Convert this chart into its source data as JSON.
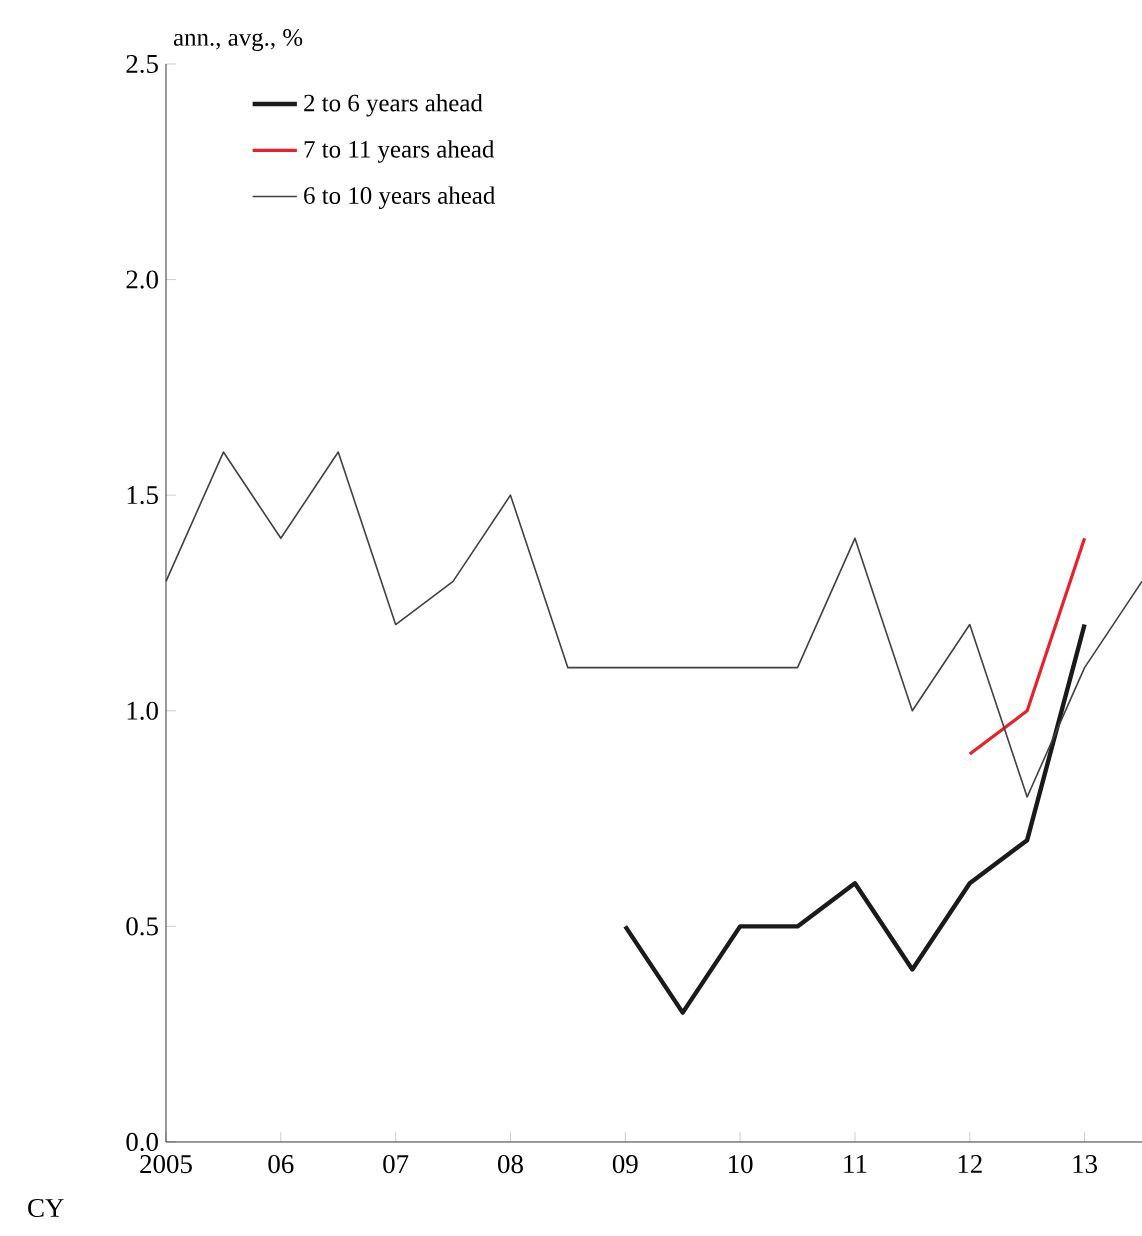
{
  "chart_data": {
    "type": "line",
    "ylabel": "ann., avg., %",
    "x": [
      2005,
      2005.5,
      2006,
      2006.5,
      2007,
      2007.5,
      2008,
      2008.5,
      2009,
      2009.5,
      2010,
      2010.5,
      2011,
      2011.5,
      2012,
      2012.5,
      2013,
      2013.5
    ],
    "series": [
      {
        "name": "2 to 6 years ahead",
        "color": "#1a1a1a",
        "values": [
          null,
          null,
          null,
          null,
          null,
          null,
          null,
          null,
          0.5,
          0.3,
          0.5,
          0.5,
          0.6,
          0.4,
          0.6,
          0.7,
          1.2,
          null
        ]
      },
      {
        "name": "7 to 11 years ahead",
        "color": "#e8202a",
        "values": [
          null,
          null,
          null,
          null,
          null,
          null,
          null,
          null,
          null,
          null,
          null,
          null,
          null,
          null,
          0.9,
          1.0,
          1.4,
          null
        ]
      },
      {
        "name": "6 to 10 years ahead",
        "color": "#404040",
        "values": [
          1.3,
          1.6,
          1.4,
          1.6,
          1.2,
          1.3,
          1.5,
          1.1,
          1.1,
          1.1,
          1.1,
          1.1,
          1.4,
          1.0,
          1.2,
          0.8,
          1.1,
          1.3
        ]
      }
    ],
    "xlim": [
      2005,
      2013.5
    ],
    "xticks": [
      {
        "value": 2005,
        "label": "2005"
      },
      {
        "value": 2006,
        "label": "06"
      },
      {
        "value": 2007,
        "label": "07"
      },
      {
        "value": 2008,
        "label": "08"
      },
      {
        "value": 2009,
        "label": "09"
      },
      {
        "value": 2010,
        "label": "10"
      },
      {
        "value": 2011,
        "label": "11"
      },
      {
        "value": 2012,
        "label": "12"
      },
      {
        "value": 2013,
        "label": "13"
      }
    ],
    "ylim": [
      0,
      2.5
    ],
    "yticks": [
      {
        "value": 0,
        "label": "0.0"
      },
      {
        "value": 0.5,
        "label": "0.5"
      },
      {
        "value": 1,
        "label": "1.0"
      },
      {
        "value": 1.5,
        "label": "1.5"
      },
      {
        "value": 2,
        "label": "2.0"
      },
      2.5
    ],
    "annotations": [
      "CY"
    ],
    "legend": "top left",
    "grid": false,
    "marker": "none"
  }
}
